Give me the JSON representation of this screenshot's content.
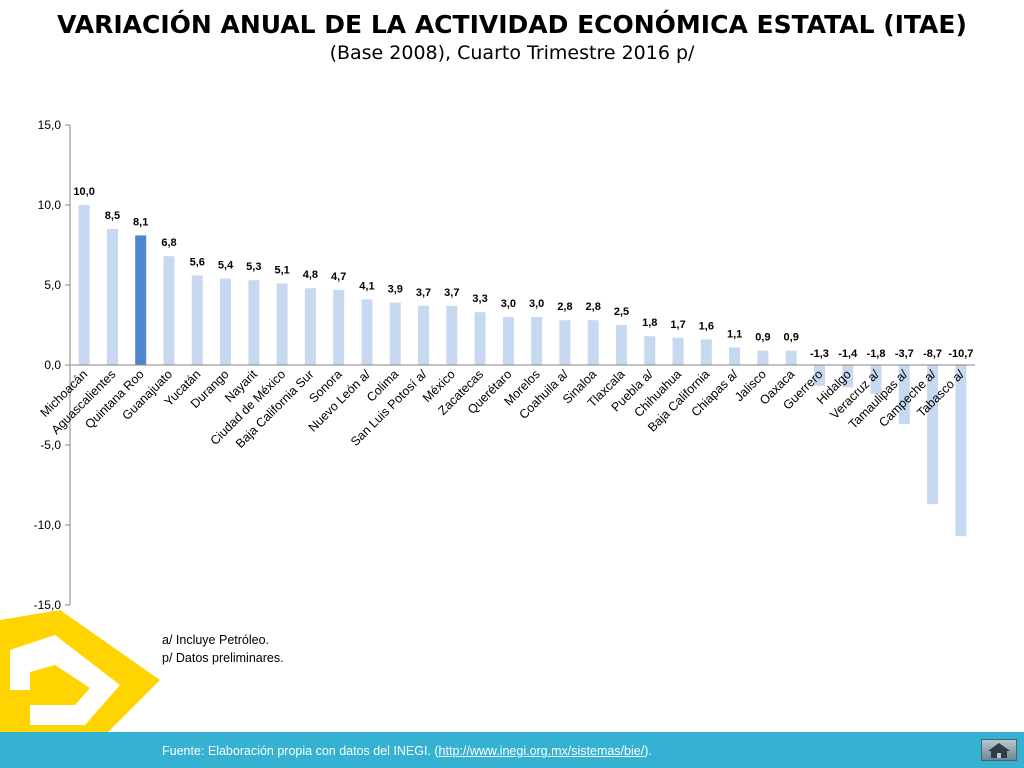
{
  "page": {
    "title": "VARIACIÓN ANUAL DE LA ACTIVIDAD ECONÓMICA ESTATAL (ITAE)",
    "subtitle": "(Base 2008),  Cuarto Trimestre 2016 p/",
    "notes": [
      "a/ Incluye Petróleo.",
      "p/ Datos preliminares."
    ],
    "footer": {
      "prefix": "Fuente: Elaboración propia con datos del INEGI. (",
      "link": "http://www.inegi.org.mx/sistemas/bie/",
      "suffix": ")."
    },
    "home_icon": "home-icon",
    "logo_icon": "yellow-logo-mark"
  },
  "chart_data": {
    "type": "bar",
    "title": "VARIACIÓN ANUAL DE LA ACTIVIDAD ECONÓMICA ESTATAL (ITAE)",
    "categories": [
      "Michoacán",
      "Aguascalientes",
      "Quintana Roo",
      "Guanajuato",
      "Yucatán",
      "Durango",
      "Nayarit",
      "Ciudad de México",
      "Baja California Sur",
      "Sonora",
      "Nuevo León a/",
      "Colima",
      "San Luis Potosí a/",
      "México",
      "Zacatecas",
      "Querétaro",
      "Morelos",
      "Coahuila a/",
      "Sinaloa",
      "Tlaxcala",
      "Puebla a/",
      "Chihuahua",
      "Baja California",
      "Chiapas a/",
      "Jalisco",
      "Oaxaca",
      "Guerrero",
      "Hidalgo",
      "Veracruz a/",
      "Tamaulipas a/",
      "Campeche a/",
      "Tabasco a/"
    ],
    "values": [
      10.0,
      8.5,
      8.1,
      6.8,
      5.6,
      5.4,
      5.3,
      5.1,
      4.8,
      4.7,
      4.1,
      3.9,
      3.7,
      3.7,
      3.3,
      3.0,
      3.0,
      2.8,
      2.8,
      2.5,
      1.8,
      1.7,
      1.6,
      1.1,
      0.9,
      0.9,
      -1.3,
      -1.4,
      -1.8,
      -3.7,
      -8.7,
      -10.7
    ],
    "value_labels": [
      "10,0",
      "8,5",
      "8,1",
      "6,8",
      "5,6",
      "5,4",
      "5,3",
      "5,1",
      "4,8",
      "4,7",
      "4,1",
      "3,9",
      "3,7",
      "3,7",
      "3,3",
      "3,0",
      "3,0",
      "2,8",
      "2,8",
      "2,5",
      "1,8",
      "1,7",
      "1,6",
      "1,1",
      "0,9",
      "0,9",
      "-1,3",
      "-1,4",
      "-1,8",
      "-3,7",
      "-8,7",
      "-10,7"
    ],
    "highlight_index": 2,
    "ylim": [
      -15,
      15
    ],
    "yticks": [
      15,
      10,
      5,
      0,
      -5,
      -10,
      -15
    ],
    "ytick_labels": [
      "15,0",
      "10,0",
      "5,0",
      "0,0",
      "-5,0",
      "-10,0",
      "-15,0"
    ],
    "grid": false,
    "colors": {
      "bar": "#c6d9f1",
      "highlight": "#4f86cf",
      "axis": "#868686"
    }
  }
}
